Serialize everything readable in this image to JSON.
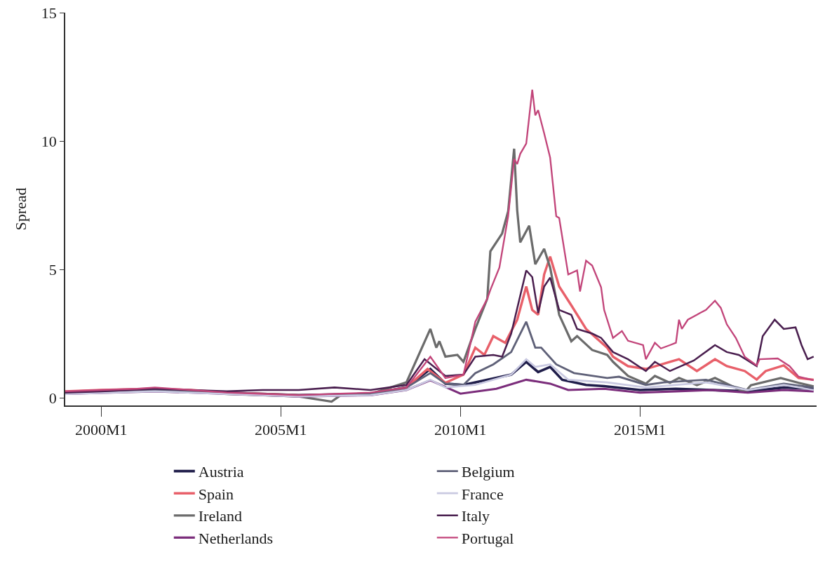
{
  "chart_data": {
    "type": "line",
    "ylabel": "Spread",
    "ylim": [
      -0.3,
      15
    ],
    "yticks": [
      0,
      5,
      10,
      15
    ],
    "xlim": [
      "1999-01",
      "2019-12"
    ],
    "xticks": [
      {
        "value": "2000-01",
        "label": "2000M1"
      },
      {
        "value": "2005-01",
        "label": "2005M1"
      },
      {
        "value": "2010-01",
        "label": "2010M1"
      },
      {
        "value": "2015-01",
        "label": "2015M1"
      }
    ],
    "legend": "bottom",
    "marker": "none",
    "line_style": "solid",
    "series": [
      {
        "name": "Austria",
        "color": "#1f1d4a",
        "x": [
          "1999-01",
          "2001-07",
          "2003-07",
          "2005-07",
          "2007-07",
          "2008-07",
          "2009-03",
          "2009-08",
          "2010-02",
          "2011-06",
          "2011-11",
          "2012-03",
          "2012-07",
          "2012-11",
          "2013-07",
          "2014-01",
          "2015-01",
          "2016-01",
          "2017-01",
          "2018-01",
          "2019-01",
          "2019-11"
        ],
        "values": [
          0.2,
          0.3,
          0.2,
          0.1,
          0.15,
          0.4,
          1.12,
          0.55,
          0.5,
          0.9,
          1.4,
          1.0,
          1.2,
          0.7,
          0.5,
          0.45,
          0.3,
          0.35,
          0.3,
          0.25,
          0.4,
          0.35
        ]
      },
      {
        "name": "Spain",
        "color": "#e8606a",
        "x": [
          "1999-01",
          "2000-01",
          "2001-07",
          "2002-07",
          "2003-07",
          "2004-07",
          "2005-07",
          "2006-07",
          "2007-07",
          "2008-07",
          "2009-02",
          "2009-08",
          "2010-02",
          "2010-06",
          "2010-09",
          "2010-12",
          "2011-04",
          "2011-08",
          "2011-11",
          "2012-01",
          "2012-03",
          "2012-05",
          "2012-07",
          "2012-10",
          "2013-02",
          "2013-07",
          "2014-02",
          "2014-04",
          "2014-09",
          "2015-03",
          "2015-11",
          "2016-02",
          "2016-08",
          "2017-02",
          "2017-06",
          "2017-12",
          "2018-04",
          "2018-07",
          "2019-01",
          "2019-06",
          "2019-11"
        ],
        "values": [
          0.25,
          0.3,
          0.35,
          0.3,
          0.2,
          0.15,
          0.1,
          0.1,
          0.15,
          0.4,
          1.12,
          0.58,
          0.9,
          1.95,
          1.67,
          2.4,
          2.14,
          3.04,
          4.33,
          3.42,
          3.23,
          4.8,
          5.5,
          4.33,
          3.6,
          2.68,
          1.95,
          1.6,
          1.23,
          1.12,
          1.4,
          1.5,
          1.04,
          1.5,
          1.23,
          1.04,
          0.71,
          1.04,
          1.26,
          0.77,
          0.7
        ]
      },
      {
        "name": "Ireland",
        "color": "#6b6b6b",
        "x": [
          "1999-01",
          "2000-01",
          "2001-07",
          "2002-07",
          "2003-07",
          "2004-07",
          "2005-07",
          "2006-06",
          "2006-09",
          "2007-07",
          "2008-07",
          "2009-03",
          "2009-05",
          "2009-06",
          "2009-08",
          "2009-12",
          "2010-02",
          "2010-06",
          "2010-10",
          "2010-11",
          "2011-03",
          "2011-05",
          "2011-07",
          "2011-08",
          "2011-09",
          "2011-12",
          "2012-02",
          "2012-05",
          "2012-07",
          "2012-10",
          "2013-02",
          "2013-04",
          "2013-09",
          "2014-02",
          "2014-04",
          "2014-09",
          "2015-03",
          "2015-06",
          "2015-11",
          "2016-02",
          "2016-08",
          "2017-02",
          "2017-07",
          "2017-12",
          "2018-02",
          "2018-12",
          "2019-06",
          "2019-11"
        ],
        "values": [
          0.2,
          0.25,
          0.3,
          0.25,
          0.15,
          0.1,
          0.05,
          -0.15,
          0.1,
          0.15,
          0.6,
          2.68,
          1.95,
          2.2,
          1.6,
          1.67,
          1.4,
          2.68,
          3.86,
          5.7,
          6.4,
          7.26,
          9.7,
          7.3,
          6.05,
          6.7,
          5.2,
          5.8,
          5.07,
          3.23,
          2.2,
          2.4,
          1.86,
          1.67,
          1.4,
          0.85,
          0.55,
          0.85,
          0.58,
          0.77,
          0.49,
          0.77,
          0.49,
          0.22,
          0.49,
          0.77,
          0.58,
          0.44
        ]
      },
      {
        "name": "Netherlands",
        "color": "#7b2d7b",
        "x": [
          "1999-01",
          "2001-07",
          "2003-07",
          "2005-07",
          "2007-07",
          "2008-07",
          "2009-03",
          "2010-01",
          "2011-01",
          "2011-11",
          "2012-07",
          "2013-01",
          "2014-01",
          "2015-01",
          "2016-01",
          "2017-01",
          "2018-01",
          "2019-01",
          "2019-11"
        ],
        "values": [
          0.15,
          0.25,
          0.15,
          0.05,
          0.1,
          0.3,
          0.68,
          0.16,
          0.35,
          0.7,
          0.55,
          0.3,
          0.35,
          0.2,
          0.25,
          0.3,
          0.2,
          0.3,
          0.25
        ]
      },
      {
        "name": "Belgium",
        "color": "#5f6178",
        "x": [
          "1999-01",
          "2001-07",
          "2003-07",
          "2005-07",
          "2007-07",
          "2008-07",
          "2009-03",
          "2009-08",
          "2010-02",
          "2010-06",
          "2010-12",
          "2011-06",
          "2011-11",
          "2012-02",
          "2012-04",
          "2012-09",
          "2013-03",
          "2014-02",
          "2014-06",
          "2015-03",
          "2015-09",
          "2016-11",
          "2017-06",
          "2018-01",
          "2019-01",
          "2019-11"
        ],
        "values": [
          0.2,
          0.3,
          0.2,
          0.1,
          0.15,
          0.4,
          0.96,
          0.55,
          0.5,
          0.96,
          1.3,
          1.78,
          2.96,
          1.95,
          1.95,
          1.3,
          0.96,
          0.77,
          0.82,
          0.5,
          0.6,
          0.7,
          0.5,
          0.3,
          0.55,
          0.4
        ]
      },
      {
        "name": "France",
        "color": "#c9c9e1",
        "x": [
          "1999-01",
          "2001-07",
          "2003-07",
          "2005-07",
          "2007-07",
          "2008-07",
          "2009-03",
          "2009-08",
          "2010-06",
          "2011-06",
          "2011-11",
          "2012-02",
          "2012-07",
          "2013-01",
          "2014-02",
          "2015-03",
          "2016-11",
          "2018-01",
          "2019-01",
          "2019-11"
        ],
        "values": [
          0.15,
          0.25,
          0.15,
          0.05,
          0.1,
          0.3,
          0.7,
          0.4,
          0.5,
          0.9,
          1.5,
          1.2,
          1.3,
          0.7,
          0.6,
          0.4,
          0.6,
          0.3,
          0.5,
          0.3
        ]
      },
      {
        "name": "Italy",
        "color": "#4a1f4f",
        "x": [
          "1999-01",
          "2000-01",
          "2001-07",
          "2002-07",
          "2003-07",
          "2004-07",
          "2005-07",
          "2006-07",
          "2007-07",
          "2008-07",
          "2009-01",
          "2009-08",
          "2010-02",
          "2010-06",
          "2010-12",
          "2011-03",
          "2011-06",
          "2011-11",
          "2012-01",
          "2012-03",
          "2012-05",
          "2012-07",
          "2012-10",
          "2013-02",
          "2013-04",
          "2013-09",
          "2013-12",
          "2014-04",
          "2014-09",
          "2015-03",
          "2015-06",
          "2015-11",
          "2016-07",
          "2017-02",
          "2017-06",
          "2017-10",
          "2018-04",
          "2018-06",
          "2018-10",
          "2019-01",
          "2019-05",
          "2019-07",
          "2019-09",
          "2019-11"
        ],
        "values": [
          0.2,
          0.25,
          0.35,
          0.3,
          0.25,
          0.3,
          0.3,
          0.4,
          0.3,
          0.5,
          1.5,
          0.85,
          0.9,
          1.6,
          1.67,
          1.6,
          2.5,
          4.96,
          4.7,
          3.3,
          4.33,
          4.68,
          3.42,
          3.23,
          2.68,
          2.5,
          2.33,
          1.78,
          1.5,
          1.04,
          1.4,
          1.04,
          1.45,
          2.05,
          1.78,
          1.67,
          1.23,
          2.4,
          3.04,
          2.68,
          2.74,
          2.05,
          1.5,
          1.6
        ]
      },
      {
        "name": "Portugal",
        "color": "#c2457a",
        "x": [
          "1999-01",
          "2000-01",
          "2001-01",
          "2001-07",
          "2002-07",
          "2003-07",
          "2004-07",
          "2005-07",
          "2006-07",
          "2007-07",
          "2008-07",
          "2009-03",
          "2009-08",
          "2010-02",
          "2010-06",
          "2010-10",
          "2010-11",
          "2011-02",
          "2011-05",
          "2011-07",
          "2011-08",
          "2011-09",
          "2011-11",
          "2012-01",
          "2012-02",
          "2012-03",
          "2012-05",
          "2012-07",
          "2012-09",
          "2012-10",
          "2013-01",
          "2013-04",
          "2013-05",
          "2013-07",
          "2013-09",
          "2013-12",
          "2014-01",
          "2014-04",
          "2014-07",
          "2014-09",
          "2015-02",
          "2015-03",
          "2015-06",
          "2015-08",
          "2015-11",
          "2016-01",
          "2016-02",
          "2016-03",
          "2016-05",
          "2016-08",
          "2016-09",
          "2016-11",
          "2017-02",
          "2017-04",
          "2017-06",
          "2017-09",
          "2017-12",
          "2018-04",
          "2018-05",
          "2018-11",
          "2019-03",
          "2019-06",
          "2019-11"
        ],
        "values": [
          0.25,
          0.3,
          0.35,
          0.4,
          0.3,
          0.2,
          0.15,
          0.1,
          0.15,
          0.2,
          0.4,
          1.6,
          0.77,
          0.9,
          2.96,
          3.86,
          4.2,
          5.07,
          7.07,
          9.3,
          9.1,
          9.5,
          9.9,
          12.0,
          11.0,
          11.2,
          10.3,
          9.35,
          7.07,
          7.0,
          4.8,
          4.96,
          4.14,
          5.34,
          5.15,
          4.3,
          3.42,
          2.33,
          2.6,
          2.22,
          2.05,
          1.5,
          2.14,
          1.92,
          2.05,
          2.14,
          3.04,
          2.68,
          3.04,
          3.23,
          3.3,
          3.42,
          3.78,
          3.5,
          2.86,
          2.33,
          1.59,
          1.26,
          1.5,
          1.53,
          1.23,
          0.82,
          0.68
        ]
      }
    ]
  }
}
